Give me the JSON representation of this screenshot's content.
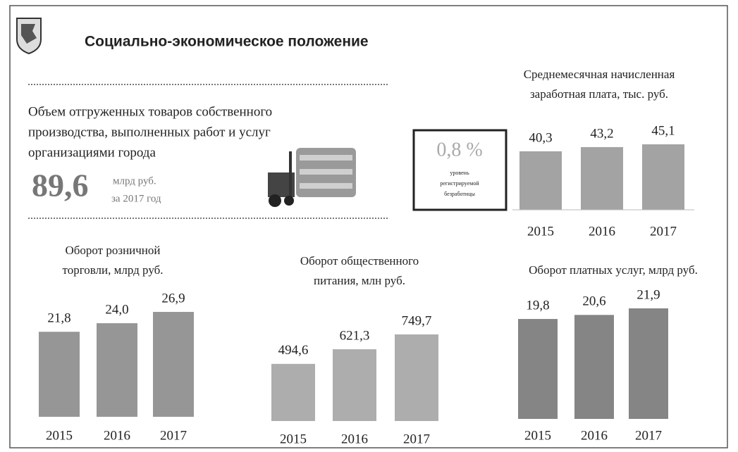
{
  "header": {
    "title": "Социально-экономическое положение"
  },
  "shipment": {
    "text": [
      "Объем отгруженных товаров собственного",
      "производства, выполненных работ и услуг",
      "организациями города"
    ],
    "value": "89,6",
    "unit": "млрд руб.",
    "period": "за 2017 год"
  },
  "unemployment": {
    "value": "0,8 %",
    "text": [
      "уровень",
      "регистрируемой",
      "безработицы"
    ]
  },
  "chart_data": [
    {
      "type": "bar",
      "title": [
        "Среднемесячная начисленная",
        "заработная плата, тыс. руб."
      ],
      "categories": [
        "2015",
        "2016",
        "2017"
      ],
      "values": [
        40.3,
        43.2,
        45.1
      ],
      "value_labels": [
        "40,3",
        "43,2",
        "45,1"
      ],
      "color": "#a3a3a3"
    },
    {
      "type": "bar",
      "title": [
        "Оборот розничной",
        "торговли, млрд руб."
      ],
      "categories": [
        "2015",
        "2016",
        "2017"
      ],
      "values": [
        21.8,
        24.0,
        26.9
      ],
      "value_labels": [
        "21,8",
        "24,0",
        "26,9"
      ],
      "color": "#969696"
    },
    {
      "type": "bar",
      "title": [
        "Оборот общественного",
        "питания, млн руб."
      ],
      "categories": [
        "2015",
        "2016",
        "2017"
      ],
      "values": [
        494.6,
        621.3,
        749.7
      ],
      "value_labels": [
        "494,6",
        "621,3",
        "749,7"
      ],
      "color": "#adadad"
    },
    {
      "type": "bar",
      "title": [
        "Оборот платных услуг, млрд руб."
      ],
      "categories": [
        "2015",
        "2016",
        "2017"
      ],
      "values": [
        19.8,
        20.6,
        21.9
      ],
      "value_labels": [
        "19,8",
        "20,6",
        "21,9"
      ],
      "color": "#858585"
    }
  ]
}
